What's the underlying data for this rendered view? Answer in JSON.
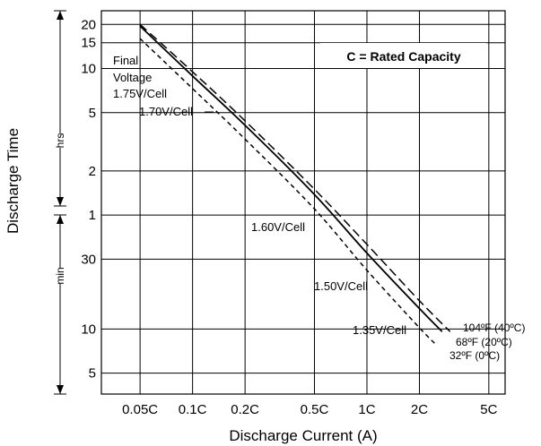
{
  "chart_data": {
    "type": "line",
    "title": "",
    "xlabel": "Discharge Current (A)",
    "ylabel": "Discharge Time",
    "x_scale": "log",
    "y_scale": "log",
    "x_unit": "C",
    "y_unit": "hours",
    "x_ticks": [
      "0.05C",
      "0.1C",
      "0.2C",
      "0.5C",
      "1C",
      "2C",
      "5C"
    ],
    "y_ticks_hours": [
      "20",
      "15",
      "10",
      "5",
      "2",
      "1"
    ],
    "y_ticks_minutes": [
      "30",
      "10",
      "5"
    ],
    "y_bands": {
      "hours": "hrs",
      "minutes": "min"
    },
    "note": "C = Rated Capacity",
    "final_voltage_label": [
      "Final",
      "Voltage"
    ],
    "voltage_labels": [
      "1.75V/Cell",
      "1.70V/Cell",
      "1.60V/Cell",
      "1.50V/Cell",
      "1.35V/Cell"
    ],
    "series": [
      {
        "name": "104ºF (40ºC)",
        "style": "long-dash",
        "x": [
          0.05,
          0.1,
          0.2,
          0.5,
          1.0,
          2.0,
          3.0
        ],
        "y": [
          20,
          9.5,
          4.4,
          1.5,
          0.63,
          0.26,
          0.16
        ]
      },
      {
        "name": "68ºF (20ºC)",
        "style": "solid",
        "x": [
          0.05,
          0.1,
          0.2,
          0.5,
          1.0,
          2.0,
          2.7
        ],
        "y": [
          19.5,
          8.9,
          4.1,
          1.38,
          0.55,
          0.23,
          0.16
        ]
      },
      {
        "name": "32ºF (0ºC)",
        "style": "short-dash",
        "x": [
          0.05,
          0.1,
          0.2,
          0.5,
          1.0,
          2.0,
          2.5
        ],
        "y": [
          16,
          7.3,
          3.3,
          1.1,
          0.42,
          0.17,
          0.13
        ]
      }
    ],
    "grid": true,
    "legend": "right-bottom"
  }
}
